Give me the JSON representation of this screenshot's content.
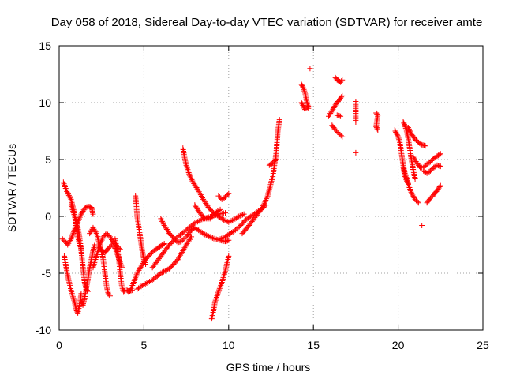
{
  "chart_data": {
    "type": "scatter",
    "title": "Day 058 of 2018, Sidereal Day-to-day VTEC variation (SDTVAR) for receiver amte",
    "xlabel": "GPS time / hours",
    "ylabel": "SDTVAR / TECUs",
    "xlim": [
      0,
      25
    ],
    "ylim": [
      -10,
      15
    ],
    "xticks": [
      0,
      5,
      10,
      15,
      20,
      25
    ],
    "yticks": [
      -10,
      -5,
      0,
      5,
      10,
      15
    ],
    "xtick_labels": [
      "0",
      "5",
      "10",
      "15",
      "20",
      "25"
    ],
    "ytick_labels": [
      "-10",
      "-5",
      "0",
      "5",
      "10",
      "15"
    ],
    "grid": true,
    "marker": "+",
    "color": "#ff0000",
    "series": [
      {
        "name": "t1",
        "x": [
          0.2,
          0.35,
          0.5,
          0.7,
          0.9,
          1.1,
          1.3,
          1.5,
          1.7,
          1.9,
          2.0
        ],
        "y": [
          -2.0,
          -2.2,
          -2.5,
          -2.0,
          -1.2,
          -0.5,
          0.2,
          0.7,
          0.9,
          0.8,
          0.2
        ]
      },
      {
        "name": "t2",
        "x": [
          0.25,
          0.45,
          0.7,
          0.9,
          1.0,
          1.1,
          1.2,
          1.3
        ],
        "y": [
          3.0,
          2.2,
          1.5,
          0.3,
          -0.8,
          -1.8,
          -2.4,
          -2.8
        ]
      },
      {
        "name": "t3",
        "x": [
          0.3,
          0.5,
          0.7,
          0.9,
          1.0,
          1.1,
          1.2,
          1.3
        ],
        "y": [
          -3.5,
          -5.2,
          -6.5,
          -7.5,
          -8.2,
          -8.5,
          -7.8,
          -6.8
        ]
      },
      {
        "name": "t4",
        "x": [
          0.7,
          0.85,
          1.0,
          1.1,
          1.2,
          1.3,
          1.4,
          1.5,
          1.6,
          1.7
        ],
        "y": [
          1.0,
          0.3,
          -0.4,
          -1.0,
          -1.8,
          -3.0,
          -4.5,
          -5.8,
          -6.4,
          -6.6
        ]
      },
      {
        "name": "t5",
        "x": [
          1.3,
          1.4,
          1.5,
          1.6,
          1.7,
          1.8,
          1.9,
          2.0,
          2.1
        ],
        "y": [
          -7.5,
          -7.8,
          -7.2,
          -6.3,
          -5.5,
          -4.5,
          -3.8,
          -3.0,
          -2.5
        ]
      },
      {
        "name": "t6",
        "x": [
          1.8,
          2.0,
          2.2,
          2.4,
          2.6,
          2.7,
          2.8,
          2.9,
          3.0
        ],
        "y": [
          -1.5,
          -1.0,
          -1.5,
          -2.5,
          -3.8,
          -5.0,
          -6.2,
          -6.8,
          -7.0
        ]
      },
      {
        "name": "t7",
        "x": [
          2.0,
          2.2,
          2.4,
          2.6,
          2.8,
          3.0,
          3.2,
          3.4,
          3.6
        ],
        "y": [
          -4.5,
          -3.5,
          -2.5,
          -1.8,
          -1.5,
          -1.8,
          -2.3,
          -2.6,
          -2.9
        ]
      },
      {
        "name": "t8",
        "x": [
          2.3,
          2.5,
          2.7,
          2.9,
          3.1,
          3.3,
          3.5,
          3.7
        ],
        "y": [
          -2.5,
          -3.0,
          -3.2,
          -2.8,
          -2.5,
          -2.8,
          -3.6,
          -4.5
        ]
      },
      {
        "name": "t9",
        "x": [
          3.3,
          3.5,
          3.6,
          3.7,
          3.8,
          3.9,
          4.0,
          4.1,
          4.3
        ],
        "y": [
          -2.0,
          -3.5,
          -5.0,
          -6.2,
          -6.6,
          -6.5,
          -6.5,
          -6.6,
          -6.5
        ]
      },
      {
        "name": "t10",
        "x": [
          4.5,
          4.55,
          4.6,
          4.7,
          4.8,
          4.9,
          5.0,
          5.1
        ],
        "y": [
          1.8,
          1.0,
          0.0,
          -1.0,
          -2.0,
          -3.0,
          -3.8,
          -4.2
        ]
      },
      {
        "name": "t11",
        "x": [
          4.2,
          4.4,
          4.6,
          4.8,
          5.0,
          5.2,
          5.4,
          5.6,
          5.8,
          6.0,
          6.2
        ],
        "y": [
          -6.5,
          -5.8,
          -5.0,
          -4.5,
          -4.0,
          -3.6,
          -3.3,
          -3.0,
          -2.8,
          -2.6,
          -2.4
        ]
      },
      {
        "name": "t12",
        "x": [
          4.6,
          5.0,
          5.5,
          6.0,
          6.5,
          7.0,
          7.5,
          7.8
        ],
        "y": [
          -6.4,
          -6.0,
          -5.6,
          -5.0,
          -4.6,
          -3.8,
          -2.5,
          -1.8
        ]
      },
      {
        "name": "t13",
        "x": [
          6.0,
          6.2,
          6.5,
          6.8,
          7.0,
          7.2,
          7.5,
          7.8,
          8.0,
          8.3,
          8.6,
          8.9,
          9.2,
          9.5,
          9.8,
          10.0
        ],
        "y": [
          -0.2,
          -0.8,
          -1.5,
          -2.0,
          -2.3,
          -2.2,
          -1.8,
          -1.2,
          -1.0,
          -1.3,
          -1.6,
          -1.8,
          -2.0,
          -2.1,
          -2.2,
          -2.1
        ]
      },
      {
        "name": "t14",
        "x": [
          5.5,
          6.0,
          6.5,
          7.0,
          7.5,
          8.0,
          8.5,
          9.0,
          9.4,
          9.8
        ],
        "y": [
          -4.5,
          -3.5,
          -2.5,
          -1.8,
          -1.2,
          -0.6,
          -0.2,
          0.0,
          0.2,
          0.3
        ]
      },
      {
        "name": "t15",
        "x": [
          7.3,
          7.4,
          7.5,
          7.7,
          7.9,
          8.2,
          8.5,
          8.8,
          9.1,
          9.4,
          9.7,
          10.0,
          10.3,
          10.6,
          10.9
        ],
        "y": [
          6.0,
          5.2,
          4.5,
          3.6,
          3.0,
          2.3,
          1.5,
          0.8,
          0.3,
          0.0,
          -0.3,
          -0.5,
          -0.3,
          0.0,
          0.2
        ]
      },
      {
        "name": "t16",
        "x": [
          8.0,
          8.3,
          8.6,
          8.9,
          9.2,
          9.5
        ],
        "y": [
          1.0,
          0.3,
          -0.2,
          -0.2,
          0.3,
          0.6
        ]
      },
      {
        "name": "t17",
        "x": [
          9.0,
          9.1,
          9.2,
          9.4,
          9.6,
          9.8,
          10.0
        ],
        "y": [
          -9.0,
          -8.3,
          -7.5,
          -6.6,
          -5.8,
          -4.8,
          -3.5
        ]
      },
      {
        "name": "t18",
        "x": [
          9.4,
          9.6,
          9.8,
          10.0
        ],
        "y": [
          1.8,
          1.5,
          1.7,
          2.0
        ]
      },
      {
        "name": "t19",
        "x": [
          9.5,
          9.8,
          10.1,
          10.4,
          10.7,
          11.0,
          11.3,
          11.6,
          11.9,
          12.2
        ],
        "y": [
          -2.0,
          -1.8,
          -1.5,
          -1.2,
          -0.8,
          -0.3,
          0.0,
          0.3,
          0.6,
          1.0
        ]
      },
      {
        "name": "t20",
        "x": [
          10.8,
          11.2,
          11.6,
          12.0,
          12.3,
          12.6,
          12.8,
          12.9,
          13.0
        ],
        "y": [
          -1.5,
          -0.8,
          0.0,
          0.8,
          1.8,
          3.5,
          5.5,
          7.5,
          8.5
        ]
      },
      {
        "name": "t21",
        "x": [
          12.4,
          12.6,
          12.8
        ],
        "y": [
          4.5,
          4.7,
          5.0
        ]
      },
      {
        "name": "t22",
        "x": [
          14.3,
          14.4,
          14.5,
          14.6,
          14.7
        ],
        "y": [
          11.6,
          11.3,
          10.9,
          10.2,
          9.5
        ]
      },
      {
        "name": "t23",
        "x": [
          14.3,
          14.5,
          14.7
        ],
        "y": [
          10.0,
          9.4,
          9.7
        ]
      },
      {
        "name": "t24",
        "x": [
          14.8
        ],
        "y": [
          13.0
        ]
      },
      {
        "name": "t25",
        "x": [
          16.3,
          16.4,
          16.5,
          16.6,
          16.7
        ],
        "y": [
          12.2,
          12.0,
          11.9,
          11.8,
          12.0
        ]
      },
      {
        "name": "t26",
        "x": [
          15.9,
          16.1,
          16.3,
          16.5,
          16.7
        ],
        "y": [
          8.8,
          9.3,
          9.8,
          10.2,
          10.6
        ]
      },
      {
        "name": "t27",
        "x": [
          16.1,
          16.3,
          16.5,
          16.7
        ],
        "y": [
          8.0,
          7.6,
          7.3,
          7.0
        ]
      },
      {
        "name": "t28",
        "x": [
          16.4,
          16.6
        ],
        "y": [
          8.9,
          8.8
        ]
      },
      {
        "name": "t29",
        "x": [
          17.5,
          17.5,
          17.5,
          17.5
        ],
        "y": [
          10.1,
          9.5,
          8.9,
          8.3
        ]
      },
      {
        "name": "t30",
        "x": [
          17.5
        ],
        "y": [
          5.6
        ]
      },
      {
        "name": "t31",
        "x": [
          18.7,
          18.8,
          18.7,
          18.8
        ],
        "y": [
          9.1,
          8.9,
          7.9,
          7.6
        ]
      },
      {
        "name": "t32",
        "x": [
          19.8,
          19.9,
          20.0,
          20.1,
          20.2,
          20.3,
          20.4,
          20.5,
          20.6
        ],
        "y": [
          7.6,
          7.3,
          7.0,
          6.5,
          5.5,
          4.5,
          3.8,
          3.3,
          2.9
        ]
      },
      {
        "name": "t33",
        "x": [
          20.3,
          20.4,
          20.5,
          20.6,
          20.7,
          20.8,
          20.9,
          21.0
        ],
        "y": [
          8.3,
          8.0,
          7.5,
          6.8,
          5.8,
          4.8,
          4.0,
          3.3
        ]
      },
      {
        "name": "t34",
        "x": [
          20.3,
          20.4,
          20.6,
          20.8,
          21.0,
          21.2
        ],
        "y": [
          4.3,
          3.5,
          2.8,
          2.0,
          1.5,
          1.2
        ]
      },
      {
        "name": "t35",
        "x": [
          20.6,
          20.8,
          21.0,
          21.2,
          21.4,
          21.6
        ],
        "y": [
          7.8,
          7.2,
          6.8,
          6.5,
          6.3,
          6.2
        ]
      },
      {
        "name": "t36",
        "x": [
          20.9,
          21.1,
          21.3,
          21.5,
          21.7,
          21.9,
          22.1,
          22.3,
          22.5
        ],
        "y": [
          5.2,
          4.7,
          4.3,
          4.3,
          4.6,
          4.8,
          5.1,
          5.3,
          5.5
        ]
      },
      {
        "name": "t37",
        "x": [
          21.5,
          21.7,
          21.9,
          22.1,
          22.3,
          22.5
        ],
        "y": [
          4.0,
          3.8,
          4.0,
          4.3,
          4.5,
          4.4
        ]
      },
      {
        "name": "t38",
        "x": [
          21.7,
          21.9,
          22.1,
          22.3,
          22.5
        ],
        "y": [
          1.2,
          1.6,
          1.9,
          2.3,
          2.7
        ]
      },
      {
        "name": "t39",
        "x": [
          21.4
        ],
        "y": [
          -0.8
        ]
      }
    ]
  }
}
